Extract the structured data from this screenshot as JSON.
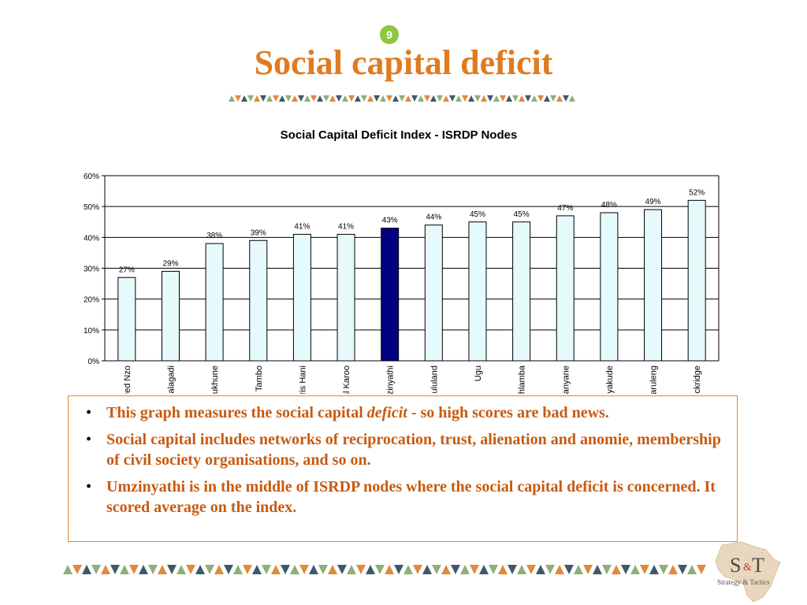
{
  "slide": {
    "number": "9",
    "title": "Social capital deficit"
  },
  "colors": {
    "title": "#e07b1f",
    "border_green": "#8fae7a",
    "border_orange": "#e08a3a",
    "border_dark": "#3d5a6a",
    "bar_fill": "#e6f9fb",
    "bar_highlight": "#000080",
    "text_orange": "#c85a10"
  },
  "chart_data": {
    "type": "bar",
    "title": "Social Capital Deficit Index - ISRDP Nodes",
    "categories": [
      "Alfred Nzo",
      "Kgalagadi",
      "Sekhukhune",
      "O.R. Tambo",
      "Chris Hani",
      "Central Karoo",
      "Umzinyathi",
      "Zululand",
      "Ugu",
      "Ukhahlamba",
      "Thabo Mofutsanyane",
      "Umkhanyakude",
      "Maruleng",
      "Bushbuckridge"
    ],
    "values": [
      27,
      29,
      38,
      39,
      41,
      41,
      43,
      44,
      45,
      45,
      47,
      48,
      49,
      52
    ],
    "data_labels": [
      "27%",
      "29%",
      "38%",
      "39%",
      "41%",
      "41%",
      "43%",
      "44%",
      "45%",
      "45%",
      "47%",
      "48%",
      "49%",
      "52%"
    ],
    "highlight": "Umzinyathi",
    "ylim": [
      0,
      60
    ],
    "yticks": [
      "0%",
      "10%",
      "20%",
      "30%",
      "40%",
      "50%",
      "60%"
    ],
    "xlabel": "",
    "ylabel": "",
    "grid": true,
    "legend": "none"
  },
  "bullets": {
    "b1_pre": "This graph measures the social capital ",
    "b1_em": "deficit",
    "b1_post": " - so high scores are bad news.",
    "b2": "Social capital includes networks of reciprocation, trust, alienation and anomie, membership of civil society organisations, and so on.",
    "b3": "Umzinyathi is in the middle of ISRDP nodes where the social capital deficit is concerned. It scored average on the index."
  },
  "logo": {
    "mark_s": "S",
    "mark_amp": "&",
    "mark_t": "T",
    "subtitle": "Strategy & Tactics"
  }
}
